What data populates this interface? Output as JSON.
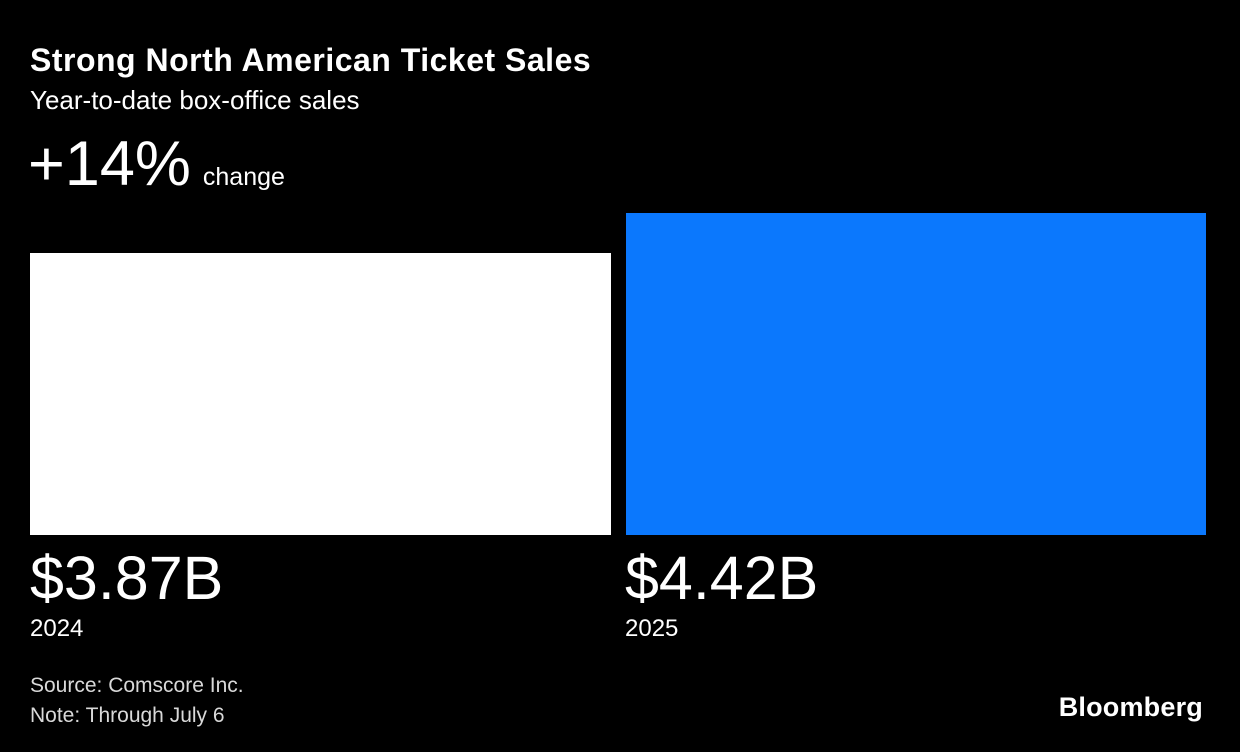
{
  "chart_data": {
    "type": "bar",
    "title": "Strong North American Ticket Sales",
    "subtitle": "Year-to-date box-office sales",
    "annotation": {
      "value": "+14%",
      "label": "change"
    },
    "categories": [
      "2024",
      "2025"
    ],
    "values": [
      3.87,
      4.42
    ],
    "value_labels": [
      "$3.87B",
      "$4.42B"
    ],
    "unit": "USD billions",
    "bar_colors": [
      "#ffffff",
      "#0b78fd"
    ],
    "ylim": [
      0,
      4.42
    ],
    "grid": false,
    "legend": "none",
    "source": "Source: Comscore Inc.",
    "note": "Note: Through July 6",
    "brand": "Bloomberg"
  },
  "colors": {
    "background": "#000000",
    "text": "#ffffff",
    "muted_text": "#d9d9d9",
    "accent_blue": "#0b78fd",
    "bar_white": "#ffffff"
  }
}
